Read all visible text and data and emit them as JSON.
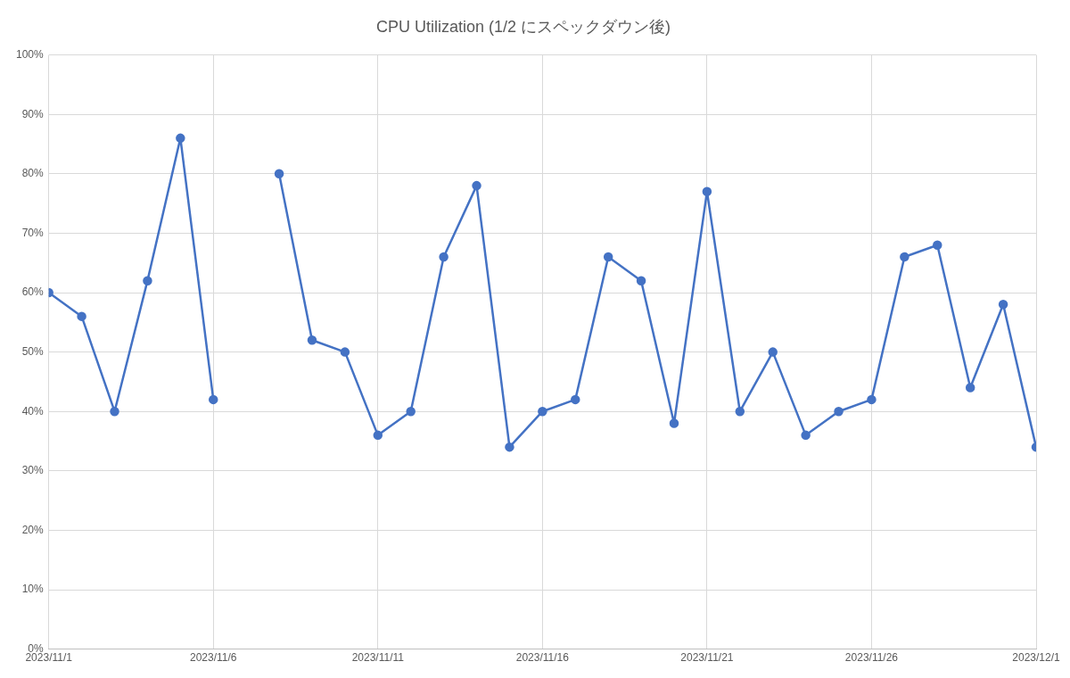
{
  "chart_data": {
    "type": "line",
    "title": "CPU Utilization (1/2 にスペックダウン後)",
    "x": [
      "2023-11-01",
      "2023-11-02",
      "2023-11-03",
      "2023-11-04",
      "2023-11-05",
      "2023-11-06",
      "2023-11-07",
      "2023-11-08",
      "2023-11-09",
      "2023-11-10",
      "2023-11-11",
      "2023-11-12",
      "2023-11-13",
      "2023-11-14",
      "2023-11-15",
      "2023-11-16",
      "2023-11-17",
      "2023-11-18",
      "2023-11-19",
      "2023-11-20",
      "2023-11-21",
      "2023-11-22",
      "2023-11-23",
      "2023-11-24",
      "2023-11-25",
      "2023-11-26",
      "2023-11-27",
      "2023-11-28",
      "2023-11-29",
      "2023-11-30",
      "2023-12-01"
    ],
    "series": [
      {
        "color": "#4472c4",
        "values": [
          60,
          56,
          40,
          62,
          86,
          42,
          null,
          80,
          52,
          50,
          36,
          40,
          66,
          78,
          34,
          40,
          42,
          66,
          62,
          38,
          77,
          40,
          50,
          36,
          40,
          42,
          66,
          68,
          44,
          58,
          34
        ]
      }
    ],
    "xlim": [
      "2023-11-01",
      "2023-12-01"
    ],
    "xticks": [
      {
        "value": "2023-11-01",
        "label": "2023/11/1"
      },
      {
        "value": "2023-11-06",
        "label": "2023/11/6"
      },
      {
        "value": "2023-11-11",
        "label": "2023/11/11"
      },
      {
        "value": "2023-11-16",
        "label": "2023/11/16"
      },
      {
        "value": "2023-11-21",
        "label": "2023/11/21"
      },
      {
        "value": "2023-11-26",
        "label": "2023/11/26"
      },
      {
        "value": "2023-12-01",
        "label": "2023/12/1"
      }
    ],
    "ylim": [
      0,
      100
    ],
    "yticks": [
      {
        "value": 0,
        "label": "0%"
      },
      {
        "value": 10,
        "label": "10%"
      },
      {
        "value": 20,
        "label": "20%"
      },
      {
        "value": 30,
        "label": "30%"
      },
      {
        "value": 40,
        "label": "40%"
      },
      {
        "value": 50,
        "label": "50%"
      },
      {
        "value": 60,
        "label": "60%"
      },
      {
        "value": 70,
        "label": "70%"
      },
      {
        "value": 80,
        "label": "80%"
      },
      {
        "value": 90,
        "label": "90%"
      },
      {
        "value": 100,
        "label": "100%"
      }
    ],
    "grid": true,
    "legend": false,
    "marker": "circle",
    "line_style": "solid"
  }
}
